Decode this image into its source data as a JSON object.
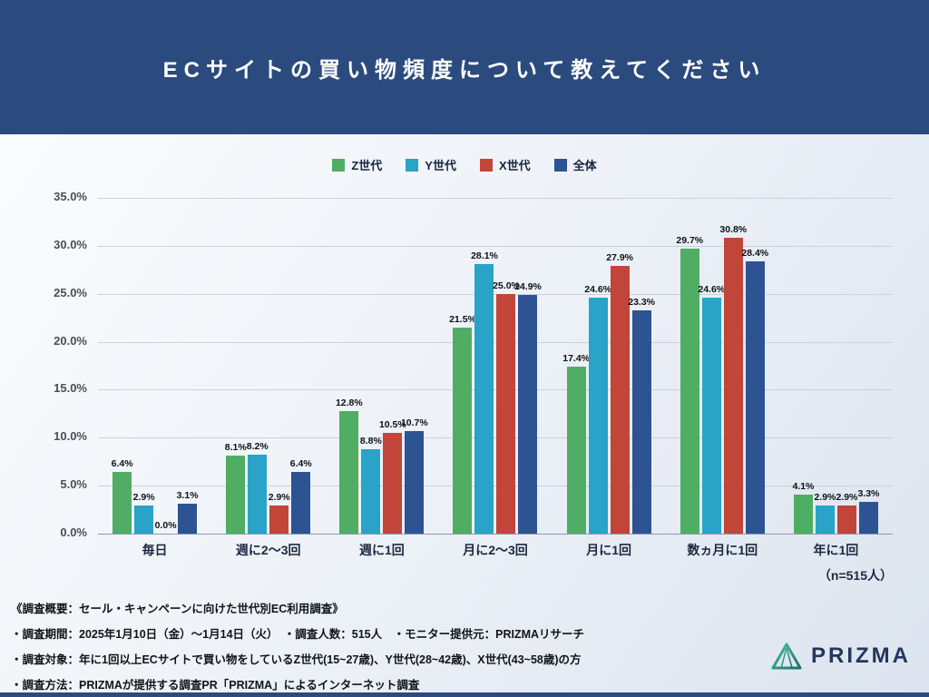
{
  "header": {
    "title": "ECサイトの買い物頻度について教えてください"
  },
  "chart_data": {
    "type": "bar",
    "title": "ECサイトの買い物頻度について教えてください",
    "categories": [
      "毎日",
      "週に2〜3回",
      "週に1回",
      "月に2〜3回",
      "月に1回",
      "数ヵ月に1回",
      "年に1回"
    ],
    "series": [
      {
        "name": "Z世代",
        "color": "#4fae63",
        "values": [
          6.4,
          8.1,
          12.8,
          21.5,
          17.4,
          29.7,
          4.1
        ]
      },
      {
        "name": "Y世代",
        "color": "#29a3c8",
        "values": [
          2.9,
          8.2,
          8.8,
          28.1,
          24.6,
          24.6,
          2.9
        ]
      },
      {
        "name": "X世代",
        "color": "#c2453a",
        "values": [
          0.0,
          2.9,
          10.5,
          25.0,
          27.9,
          30.8,
          2.9
        ]
      },
      {
        "name": "全体",
        "color": "#2d5392",
        "values": [
          3.1,
          6.4,
          10.7,
          24.9,
          23.3,
          28.4,
          3.3
        ]
      }
    ],
    "ylim": [
      0,
      35
    ],
    "yticks": [
      "0.0%",
      "5.0%",
      "10.0%",
      "15.0%",
      "20.0%",
      "25.0%",
      "30.0%",
      "35.0%"
    ],
    "value_label_format": "{value}%",
    "legend_position": "top",
    "grid": true
  },
  "sample_note": "（n=515人）",
  "footer": {
    "lines": [
      "《調査概要：セール・キャンペーンに向けた世代別EC利用調査》",
      "・調査期間：2025年1月10日（金）〜1月14日（火）　・調査人数：515人　・モニター提供元：PRIZMAリサーチ",
      "・調査対象：年に1回以上ECサイトで買い物をしているZ世代(15~27歳)、Y世代(28~42歳)、X世代(43~58歳)の方",
      "・調査方法：PRIZMAが提供する調査PR「PRIZMA」によるインターネット調査"
    ]
  },
  "brand": {
    "name": "PRIZMA",
    "logo_icon": "prism-triangle-icon"
  },
  "colors": {
    "header_bg": "#2b4a7d",
    "accent_green": "#4fae63",
    "accent_cyan": "#29a3c8",
    "accent_red": "#c2453a",
    "accent_navy": "#2d5392"
  }
}
